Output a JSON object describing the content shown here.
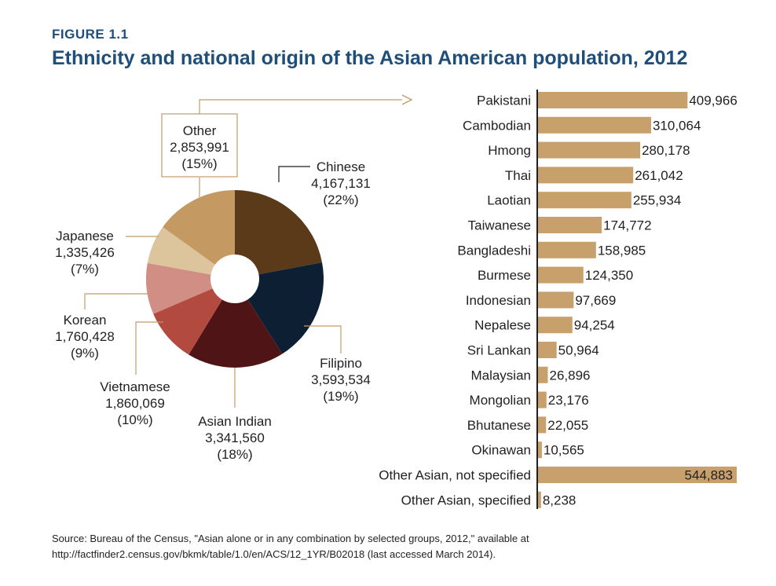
{
  "figure_label": "FIGURE 1.1",
  "figure_title": "Ethnicity and national origin of the Asian American population, 2012",
  "source_line1": "Source: Bureau of the Census, \"Asian alone or in any combination by selected groups, 2012,\" available at",
  "source_line2": "http://factfinder2.census.gov/bkmk/table/1.0/en/ACS/12_1YR/B02018 (last accessed March 2014).",
  "chart_data": [
    {
      "type": "pie",
      "donut": true,
      "slices": [
        {
          "name": "Chinese",
          "value_label": "4,167,131",
          "percent_label": "(22%)",
          "value": 4167131,
          "percent": 22,
          "color": "#5a3a18"
        },
        {
          "name": "Filipino",
          "value_label": "3,593,534",
          "percent_label": "(19%)",
          "value": 3593534,
          "percent": 19,
          "color": "#0d1f33"
        },
        {
          "name": "Asian Indian",
          "value_label": "3,341,560",
          "percent_label": "(18%)",
          "value": 3341560,
          "percent": 18,
          "color": "#4e1416"
        },
        {
          "name": "Vietnamese",
          "value_label": "1,860,069",
          "percent_label": "(10%)",
          "value": 1860069,
          "percent": 10,
          "color": "#b34a40"
        },
        {
          "name": "Korean",
          "value_label": "1,760,428",
          "percent_label": "(9%)",
          "value": 1760428,
          "percent": 9,
          "color": "#d18e85"
        },
        {
          "name": "Japanese",
          "value_label": "1,335,426",
          "percent_label": "(7%)",
          "value": 1335426,
          "percent": 7,
          "color": "#dcc49c"
        },
        {
          "name": "Other",
          "value_label": "2,853,991",
          "percent_label": "(15%)",
          "value": 2853991,
          "percent": 15,
          "color": "#c49a62"
        }
      ],
      "leader_color": "#c19b6c"
    },
    {
      "type": "bar",
      "orientation": "horizontal",
      "bar_color": "#c8a06b",
      "categories": [
        "Pakistani",
        "Cambodian",
        "Hmong",
        "Thai",
        "Laotian",
        "Taiwanese",
        "Bangladeshi",
        "Burmese",
        "Indonesian",
        "Nepalese",
        "Sri Lankan",
        "Malaysian",
        "Mongolian",
        "Bhutanese",
        "Okinawan",
        "Other Asian, not specified",
        "Other Asian, specified"
      ],
      "values": [
        409966,
        310064,
        280178,
        261042,
        255934,
        174772,
        158985,
        124350,
        97669,
        94254,
        50964,
        26896,
        23176,
        22055,
        10565,
        544883,
        8238
      ],
      "value_labels": [
        "409,966",
        "310,064",
        "280,178",
        "261,042",
        "255,934",
        "174,772",
        "158,985",
        "124,350",
        "97,669",
        "94,254",
        "50,964",
        "26,896",
        "23,176",
        "22,055",
        "10,565",
        "544,883",
        "8,238"
      ],
      "xlim": [
        0,
        544883
      ]
    }
  ]
}
